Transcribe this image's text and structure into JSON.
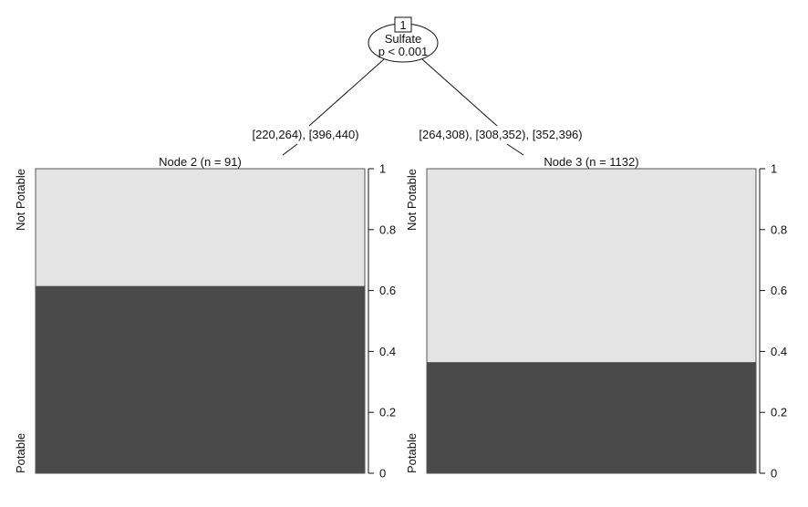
{
  "root": {
    "id": "1",
    "variable": "Sulfate",
    "pvalue": "p < 0.001"
  },
  "edges": {
    "left": "[220,264), [396,440)",
    "right": "[264,308), [308,352), [352,396)"
  },
  "chart_data": [
    {
      "type": "bar",
      "title": "Node 2 (n = 91)",
      "categories": [
        "Potable",
        "Not Potable"
      ],
      "values": [
        0.615,
        0.385
      ],
      "ylim": [
        0,
        1
      ],
      "yticks": [
        "0",
        "0.2",
        "0.4",
        "0.6",
        "0.8",
        "1"
      ],
      "colors": [
        "#4a4a4a",
        "#e4e4e4"
      ]
    },
    {
      "type": "bar",
      "title": "Node 3 (n = 1132)",
      "categories": [
        "Potable",
        "Not Potable"
      ],
      "values": [
        0.365,
        0.635
      ],
      "ylim": [
        0,
        1
      ],
      "yticks": [
        "0",
        "0.2",
        "0.4",
        "0.6",
        "0.8",
        "1"
      ],
      "colors": [
        "#4a4a4a",
        "#e4e4e4"
      ]
    }
  ]
}
